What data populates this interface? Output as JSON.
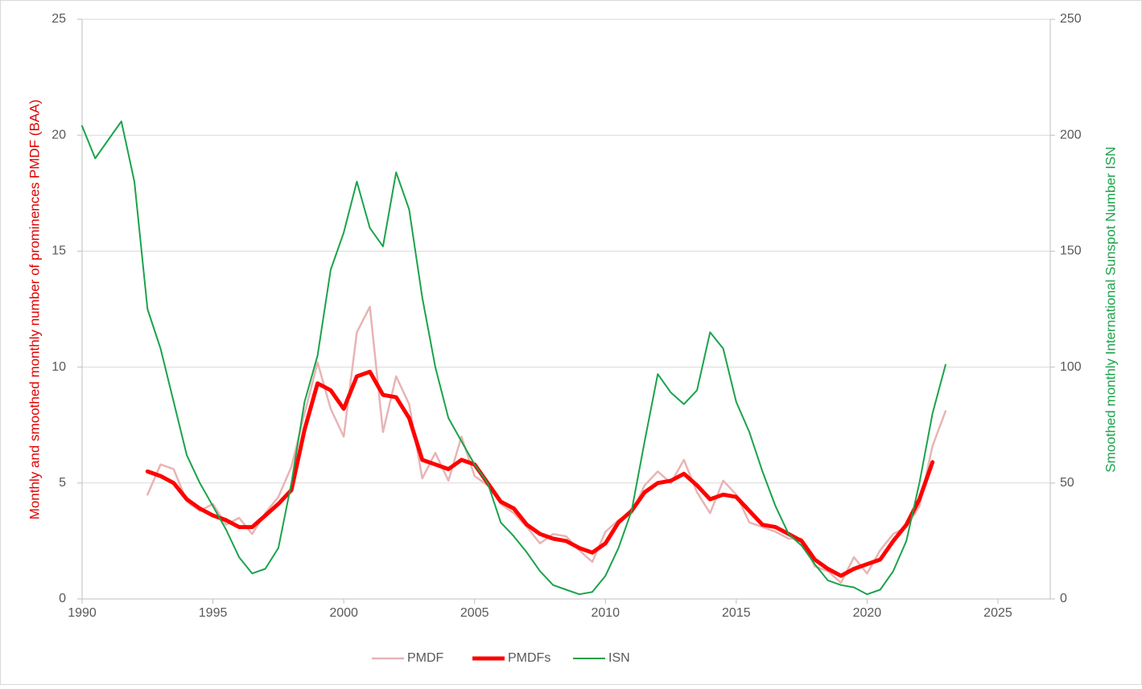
{
  "chart_data": {
    "type": "line",
    "y_label": "Monthly and smoothed monthly number of prominences PMDF (BAA)",
    "y2_label": "Smoothed monthly International Sunspot Number ISN",
    "x": [
      1990,
      1990.5,
      1991,
      1991.5,
      1992,
      1992.5,
      1993,
      1993.5,
      1994,
      1994.5,
      1995,
      1995.5,
      1996,
      1996.5,
      1997,
      1997.5,
      1998,
      1998.5,
      1999,
      1999.5,
      2000,
      2000.5,
      2001,
      2001.5,
      2002,
      2002.5,
      2003,
      2003.5,
      2004,
      2004.5,
      2005,
      2005.5,
      2006,
      2006.5,
      2007,
      2007.5,
      2008,
      2008.5,
      2009,
      2009.5,
      2010,
      2010.5,
      2011,
      2011.5,
      2012,
      2012.5,
      2013,
      2013.5,
      2014,
      2014.5,
      2015,
      2015.5,
      2016,
      2016.5,
      2017,
      2017.5,
      2018,
      2018.5,
      2019,
      2019.5,
      2020,
      2020.5,
      2021,
      2021.5,
      2022,
      2022.5,
      2023
    ],
    "xlim": [
      1990,
      2027
    ],
    "xticks": [
      1990,
      1995,
      2000,
      2005,
      2010,
      2015,
      2020,
      2025
    ],
    "ylim": [
      0,
      25
    ],
    "yticks": [
      0,
      5,
      10,
      15,
      20,
      25
    ],
    "y2lim": [
      0,
      250
    ],
    "y2ticks": [
      0,
      50,
      100,
      150,
      200,
      250
    ],
    "grid": true,
    "legend": "bottom",
    "series": [
      {
        "name": "PMDF",
        "color": "#e8b4b4",
        "width": 2.5,
        "values": [
          null,
          null,
          null,
          null,
          null,
          4.5,
          5.8,
          5.6,
          4.2,
          3.8,
          4.1,
          3.2,
          3.5,
          2.8,
          3.7,
          4.4,
          5.7,
          8.0,
          10.2,
          8.2,
          7.0,
          11.5,
          12.6,
          7.2,
          9.6,
          8.4,
          5.2,
          6.3,
          5.1,
          7.0,
          5.3,
          4.9,
          4.1,
          3.7,
          3.1,
          2.4,
          2.8,
          2.7,
          2.1,
          1.6,
          2.9,
          3.4,
          3.7,
          4.9,
          5.5,
          5.0,
          6.0,
          4.6,
          3.7,
          5.1,
          4.5,
          3.3,
          3.1,
          2.9,
          2.6,
          2.6,
          1.4,
          1.2,
          0.7,
          1.8,
          1.1,
          2.1,
          2.8,
          3.1,
          4.0,
          6.6,
          8.1
        ]
      },
      {
        "name": "PMDFs",
        "color": "#ff0000",
        "width": 5,
        "values": [
          null,
          null,
          null,
          null,
          null,
          5.5,
          5.3,
          5.0,
          4.3,
          3.9,
          3.6,
          3.4,
          3.1,
          3.1,
          3.6,
          4.1,
          4.7,
          7.3,
          9.3,
          9.0,
          8.2,
          9.6,
          9.8,
          8.8,
          8.7,
          7.8,
          6.0,
          5.8,
          5.6,
          6.0,
          5.8,
          5.0,
          4.2,
          3.9,
          3.2,
          2.8,
          2.6,
          2.5,
          2.2,
          2.0,
          2.4,
          3.3,
          3.8,
          4.6,
          5.0,
          5.1,
          5.4,
          4.9,
          4.3,
          4.5,
          4.4,
          3.8,
          3.2,
          3.1,
          2.8,
          2.5,
          1.7,
          1.3,
          1.0,
          1.3,
          1.5,
          1.7,
          2.5,
          3.2,
          4.3,
          5.9,
          null
        ]
      },
      {
        "name": "ISN",
        "color": "#1aa34a",
        "width": 2,
        "axis": "y2",
        "values": [
          204,
          190,
          198,
          206,
          180,
          125,
          108,
          85,
          62,
          50,
          40,
          30,
          18,
          11,
          13,
          22,
          50,
          85,
          105,
          142,
          158,
          180,
          160,
          152,
          184,
          168,
          130,
          100,
          78,
          68,
          58,
          50,
          33,
          27,
          20,
          12,
          6,
          4,
          2,
          3,
          10,
          22,
          38,
          68,
          97,
          89,
          84,
          90,
          115,
          108,
          85,
          72,
          55,
          40,
          28,
          23,
          15,
          8,
          6,
          5,
          2,
          4,
          12,
          25,
          50,
          80,
          101
        ]
      }
    ]
  }
}
